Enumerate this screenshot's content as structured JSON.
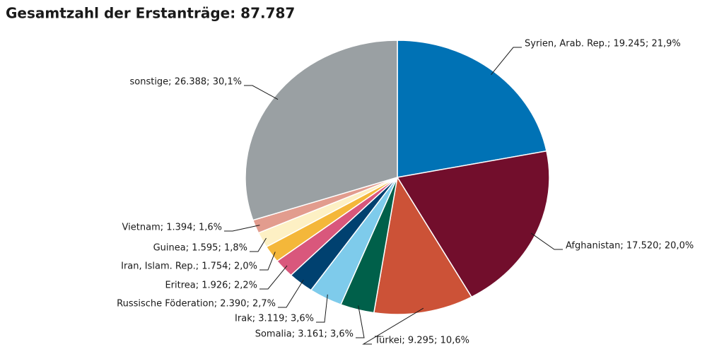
{
  "chart_data": {
    "type": "pie",
    "title": "Gesamtzahl der Erstanträge:  87.787",
    "values": [
      19245,
      17520,
      9295,
      3161,
      3119,
      2390,
      1926,
      1754,
      1595,
      1394,
      26388
    ],
    "value_labels": [
      "Syrien, Arab. Rep.; 19.245; 21,9%",
      "Afghanistan; 17.520; 20,0%",
      "Türkei; 9.295; 10,6%",
      "Somalia; 3.161; 3,6%",
      "Irak; 3.119; 3,6%",
      "Russische Föderation; 2.390; 2,7%",
      "Eritrea; 1.926; 2,2%",
      "Iran, Islam. Rep.; 1.754; 2,0%",
      "Guinea; 1.595; 1,8%",
      "Vietnam; 1.394; 1,6%",
      "sonstige; 26.388; 30,1%"
    ],
    "colors": [
      "#0072b5",
      "#720e2c",
      "#cc5237",
      "#00604a",
      "#7ecbeb",
      "#004170",
      "#d9577c",
      "#f4b73a",
      "#fdf0c4",
      "#e29c8e",
      "#9aa0a3"
    ]
  }
}
